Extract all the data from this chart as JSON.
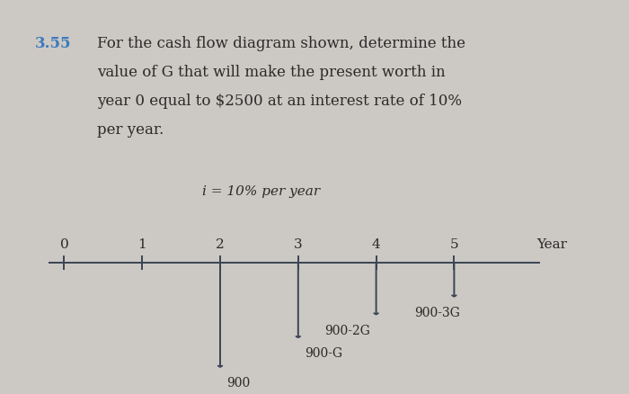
{
  "background_color": "#ccc8c3",
  "problem_number": "3.55",
  "problem_number_color": "#3a7abf",
  "problem_text_lines": [
    "For the cash flow diagram shown, determine the",
    "value of G that will make the present worth in",
    "year 0 equal to $2500 at an interest rate of 10%",
    "per year."
  ],
  "interest_label": "i = 10% per year",
  "year_labels": [
    "0",
    "1",
    "2",
    "3",
    "4",
    "5",
    "Year"
  ],
  "arrow_years": [
    2,
    3,
    4,
    5
  ],
  "arrow_depths": [
    1.0,
    0.72,
    0.5,
    0.33
  ],
  "arrow_labels": [
    "900",
    "900-G",
    "900-2G",
    "900-3G"
  ],
  "arrow_label_ha": [
    "left",
    "left",
    "right",
    "right"
  ],
  "arrow_label_xoff": [
    0.08,
    0.08,
    -0.08,
    0.08
  ],
  "arrow_color": "#3a4555",
  "text_color": "#2a2a2a",
  "font_size_problem": 12,
  "font_size_labels": 11,
  "font_size_interest": 11,
  "font_size_arrow_labels": 10
}
